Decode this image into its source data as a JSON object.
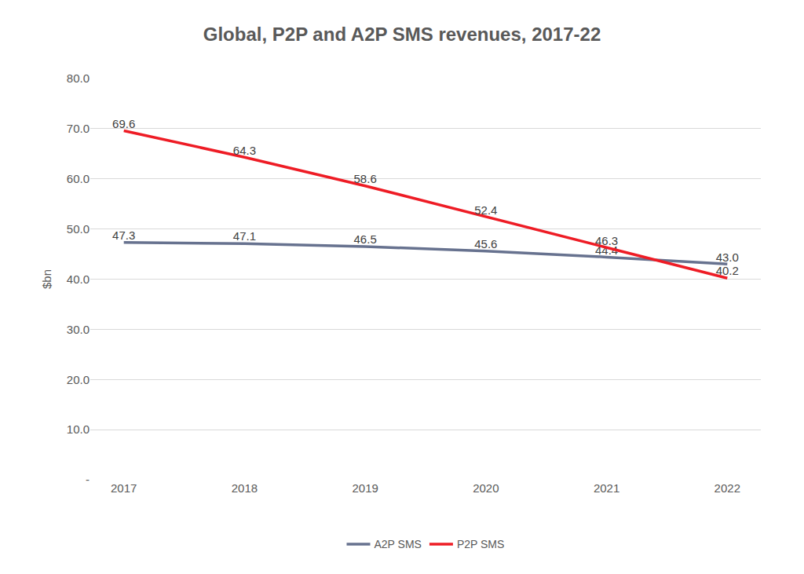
{
  "chart_data": {
    "type": "line",
    "title": "Global, P2P and A2P SMS revenues, 2017-22",
    "y_label": "$bn",
    "categories": [
      "2017",
      "2018",
      "2019",
      "2020",
      "2021",
      "2022"
    ],
    "series": [
      {
        "name": "A2P SMS",
        "color": "#67728f",
        "values": [
          47.3,
          47.1,
          46.5,
          45.6,
          44.4,
          43.0
        ],
        "value_labels": [
          "47.3",
          "47.1",
          "46.5",
          "45.6",
          "44.4",
          "43.0"
        ]
      },
      {
        "name": "P2P SMS",
        "color": "#ee1c25",
        "values": [
          69.6,
          64.3,
          58.6,
          52.4,
          46.3,
          40.2
        ],
        "value_labels": [
          "69.6",
          "64.3",
          "58.6",
          "52.4",
          "46.3",
          "40.2"
        ]
      }
    ],
    "ylim": [
      0,
      80
    ],
    "yticks": [
      {
        "value": 0,
        "label": "-"
      },
      {
        "value": 10,
        "label": "10.0"
      },
      {
        "value": 20,
        "label": "20.0"
      },
      {
        "value": 30,
        "label": "30.0"
      },
      {
        "value": 40,
        "label": "40.0"
      },
      {
        "value": 50,
        "label": "50.0"
      },
      {
        "value": 60,
        "label": "60.0"
      },
      {
        "value": 70,
        "label": "70.0"
      },
      {
        "value": 80,
        "label": "80.0"
      }
    ],
    "grid": true,
    "data_labels": true,
    "legend": "bottom"
  }
}
